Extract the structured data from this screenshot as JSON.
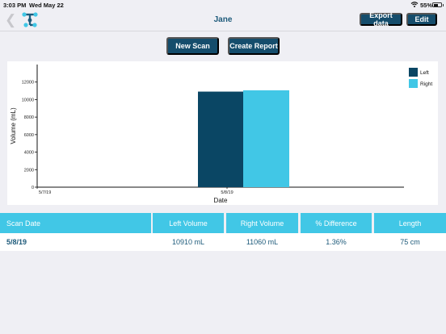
{
  "status": {
    "time": "3:03 PM",
    "date": "Wed May 22",
    "battery": "55%",
    "battery_level": 0.55
  },
  "nav": {
    "title": "Jane",
    "export_label": "Export data",
    "edit_label": "Edit"
  },
  "actions": {
    "new_scan": "New Scan",
    "create_report": "Create Report"
  },
  "colors": {
    "left": "#0a4664",
    "right": "#41c7e6",
    "header": "#41c7e6",
    "button": "#154d6c"
  },
  "chart_data": {
    "type": "bar",
    "x": [
      "5/7/19",
      "5/8/19"
    ],
    "categories": [
      "5/8/19"
    ],
    "series": [
      {
        "name": "Left",
        "values": [
          10910
        ]
      },
      {
        "name": "Right",
        "values": [
          11060
        ]
      }
    ],
    "yticks": [
      "0",
      "2000",
      "4000",
      "6000",
      "8000",
      "10000",
      "12000"
    ],
    "ylim": [
      0,
      14000
    ],
    "xlabel": "Date",
    "ylabel": "Volume (mL)",
    "legend": "top-right",
    "grid": false
  },
  "table": {
    "headers": [
      "Scan Date",
      "Left Volume",
      "Right Volume",
      "% Difference",
      "Length"
    ],
    "rows": [
      [
        "5/8/19",
        "10910 mL",
        "11060 mL",
        "1.36%",
        "75 cm"
      ]
    ]
  }
}
